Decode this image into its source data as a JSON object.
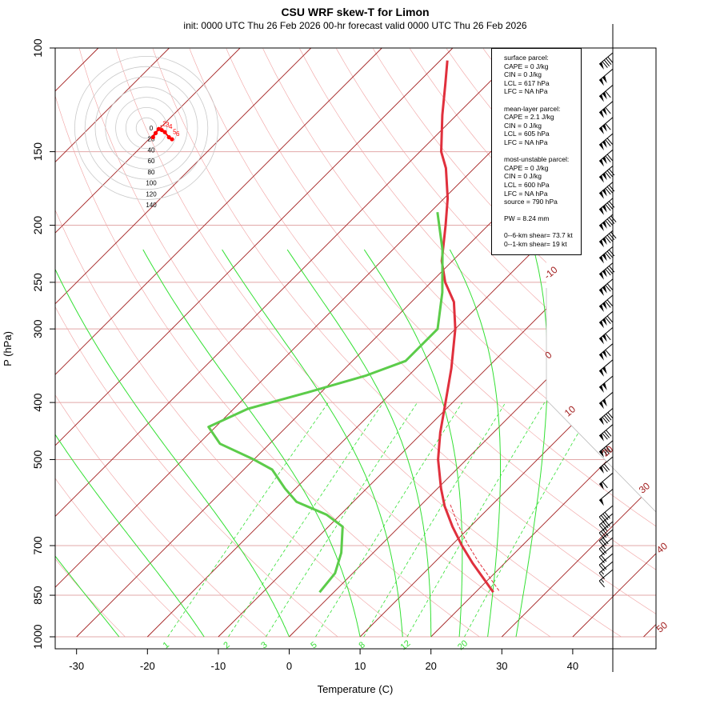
{
  "title": "CSU WRF skew-T for Limon",
  "subtitle": "init: 0000 UTC Thu 26 Feb 2026    00-hr forecast valid 0000 UTC Thu 26 Feb 2026",
  "info_box": {
    "blocks": [
      [
        "surface parcel:",
        "CAPE = 0 J/kg",
        "CIN = 0 J/kg",
        "LCL = 617 hPa",
        "LFC = NA hPa"
      ],
      [
        "mean-layer parcel:",
        "CAPE = 2.1 J/kg",
        "CIN = 0 J/kg",
        "LCL = 605 hPa",
        "LFC = NA hPa"
      ],
      [
        "most-unstable parcel:",
        "CAPE = 0 J/kg",
        "CIN = 0 J/kg",
        "LCL = 600 hPa",
        "LFC = NA hPa",
        "source = 790 hPa"
      ],
      [
        "PW =  8.24 mm"
      ],
      [
        "0--6-km shear= 73.7 kt",
        "0--1-km shear= 19 kt"
      ]
    ]
  },
  "chart_data": {
    "type": "line",
    "title": "CSU WRF skew-T for Limon",
    "xlabel": "Temperature (C)",
    "ylabel": "P (hPa)",
    "x_ticks": [
      -30,
      -20,
      -10,
      0,
      10,
      20,
      30,
      40
    ],
    "y_ticks": [
      100,
      150,
      200,
      250,
      300,
      400,
      500,
      700,
      850,
      1000
    ],
    "xlim": [
      -33,
      42
    ],
    "ylim": [
      1000,
      100
    ],
    "isotherm_labels": [
      "-10",
      "0",
      "10",
      "20",
      "30",
      "40",
      "50"
    ],
    "mixing_ratio_labels": [
      "1",
      "2",
      "3",
      "5",
      "8",
      "12",
      "20"
    ],
    "colors": {
      "temperature": "#e0303d",
      "dewpoint": "#5ccc4a",
      "isotherm": "#a32020",
      "dry_adiabat": "#f0a0a0",
      "moist_adiabat": "#33e033",
      "mixing_ratio": "#33e033",
      "hodograph": "#ff0000"
    },
    "series": [
      {
        "values": [
          {
            "p": 840,
            "t": 22.5
          },
          {
            "p": 800,
            "t": 19.5
          },
          {
            "p": 750,
            "t": 15.5
          },
          {
            "p": 700,
            "t": 11.5
          },
          {
            "p": 650,
            "t": 7.5
          },
          {
            "p": 600,
            "t": 3.5
          },
          {
            "p": 560,
            "t": 0.5
          },
          {
            "p": 500,
            "t": -4.0
          },
          {
            "p": 450,
            "t": -7.5
          },
          {
            "p": 400,
            "t": -11.0
          },
          {
            "p": 350,
            "t": -15.0
          },
          {
            "p": 300,
            "t": -20.0
          },
          {
            "p": 270,
            "t": -24.0
          },
          {
            "p": 250,
            "t": -28.0
          },
          {
            "p": 230,
            "t": -31.5
          },
          {
            "p": 200,
            "t": -36.0
          },
          {
            "p": 180,
            "t": -39.5
          },
          {
            "p": 160,
            "t": -44.0
          },
          {
            "p": 150,
            "t": -47.0
          },
          {
            "p": 130,
            "t": -52.0
          },
          {
            "p": 115,
            "t": -56.0
          },
          {
            "p": 105,
            "t": -59.0
          }
        ]
      },
      {
        "values": [
          {
            "p": 840,
            "t": -2.0
          },
          {
            "p": 780,
            "t": -2.5
          },
          {
            "p": 720,
            "t": -4.5
          },
          {
            "p": 650,
            "t": -8.0
          },
          {
            "p": 620,
            "t": -12.0
          },
          {
            "p": 590,
            "t": -18.0
          },
          {
            "p": 560,
            "t": -21.5
          },
          {
            "p": 520,
            "t": -26.0
          },
          {
            "p": 500,
            "t": -30.0
          },
          {
            "p": 470,
            "t": -37.0
          },
          {
            "p": 440,
            "t": -41.0
          },
          {
            "p": 410,
            "t": -38.0
          },
          {
            "p": 385,
            "t": -32.0
          },
          {
            "p": 360,
            "t": -26.0
          },
          {
            "p": 340,
            "t": -22.5
          },
          {
            "p": 300,
            "t": -22.5
          },
          {
            "p": 260,
            "t": -27.0
          },
          {
            "p": 220,
            "t": -33.0
          },
          {
            "p": 190,
            "t": -39.0
          }
        ]
      }
    ],
    "hodograph": {
      "rings": [
        20,
        40,
        60,
        80,
        100,
        120,
        140
      ],
      "ring_labels": [
        "0",
        "20",
        "40",
        "60",
        "80",
        "100",
        "120",
        "140"
      ],
      "points": [
        {
          "label": "1",
          "u": 18,
          "v": -10
        },
        {
          "label": "2",
          "u": 24,
          "v": -2
        },
        {
          "label": "3",
          "u": 30,
          "v": -4
        },
        {
          "label": "4",
          "u": 36,
          "v": -8
        },
        {
          "label": "5",
          "u": 44,
          "v": -18
        },
        {
          "label": "6",
          "u": 50,
          "v": -22
        }
      ]
    }
  }
}
